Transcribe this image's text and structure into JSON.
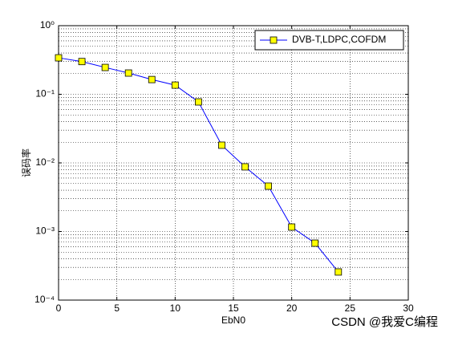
{
  "chart_data": {
    "type": "line",
    "log_y": true,
    "grid": true,
    "minor_grid": true,
    "xlabel": "EbN0",
    "ylabel": "误码率",
    "x": [
      0,
      2,
      4,
      6,
      8,
      10,
      12,
      14,
      16,
      18,
      20,
      22,
      24
    ],
    "series": [
      {
        "name": "DVB-T,LDPC,COFDM",
        "color": "#0000ff",
        "marker_face": "#ffff00",
        "values": [
          0.34,
          0.3,
          0.246,
          0.204,
          0.164,
          0.136,
          0.0774,
          0.0181,
          0.00875,
          0.00458,
          0.00116,
          0.000676,
          0.000257
        ]
      }
    ],
    "xlim": [
      0,
      30
    ],
    "xticks": [
      0,
      5,
      10,
      15,
      20,
      25,
      30
    ],
    "ylim": [
      0.0001,
      1
    ],
    "yticks": [
      {
        "value": 0.0001,
        "label": "10⁻⁴"
      },
      {
        "value": 0.001,
        "label": "10⁻³"
      },
      {
        "value": 0.01,
        "label": "10⁻²"
      },
      {
        "value": 0.1,
        "label": "10⁻¹"
      },
      {
        "value": 1,
        "label": "10⁰"
      }
    ],
    "legend": "upper right",
    "watermark": "CSDN @我爱C编程"
  }
}
